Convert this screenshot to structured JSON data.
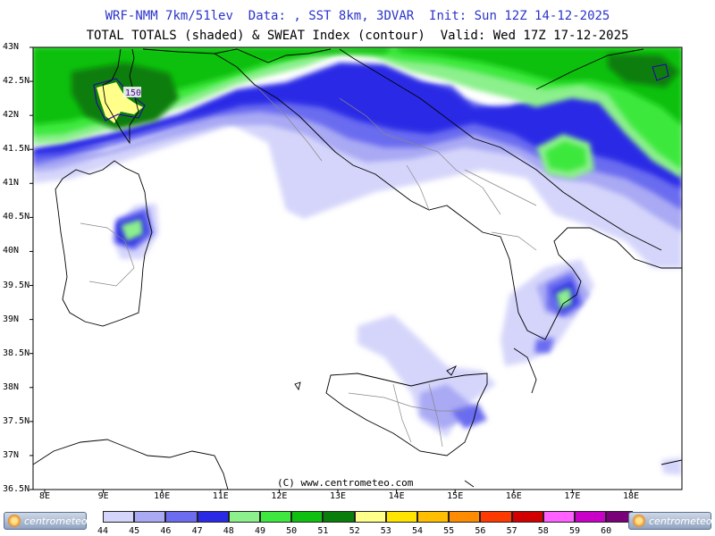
{
  "header": {
    "line1": "WRF-NMM 7km/51lev  Data: , SST 8km, 3DVAR  Init: Sun 12Z 14-12-2025",
    "line2": "TOTAL TOTALS (shaded) & SWEAT Index (contour)  Valid: Wed 17Z 17-12-2025"
  },
  "axes": {
    "lat_labels": [
      "43N",
      "42.5N",
      "42N",
      "41.5N",
      "41N",
      "40.5N",
      "40N",
      "39.5N",
      "39N",
      "38.5N",
      "38N",
      "37.5N",
      "37N",
      "36.5N"
    ],
    "lon_labels": [
      "8E",
      "9E",
      "10E",
      "11E",
      "12E",
      "13E",
      "14E",
      "15E",
      "16E",
      "17E",
      "18E"
    ]
  },
  "contour_label": "150",
  "copyright": "(C) www.centrometeo.com",
  "colorbar": {
    "labels": [
      "44",
      "45",
      "46",
      "47",
      "48",
      "49",
      "50",
      "51",
      "52",
      "53",
      "54",
      "55",
      "56",
      "57",
      "58",
      "59",
      "60"
    ],
    "colors": [
      "#d5d5fb",
      "#a9a9f4",
      "#6b6cf0",
      "#2a2ae6",
      "#8cf08c",
      "#3ee83e",
      "#10c010",
      "#0a7e0a",
      "#ffff8a",
      "#ffe400",
      "#ffbe00",
      "#ff8c00",
      "#ff3a00",
      "#d20000",
      "#ff60ff",
      "#c800c8",
      "#7a007a"
    ]
  },
  "logo_text": "centrometeo"
}
